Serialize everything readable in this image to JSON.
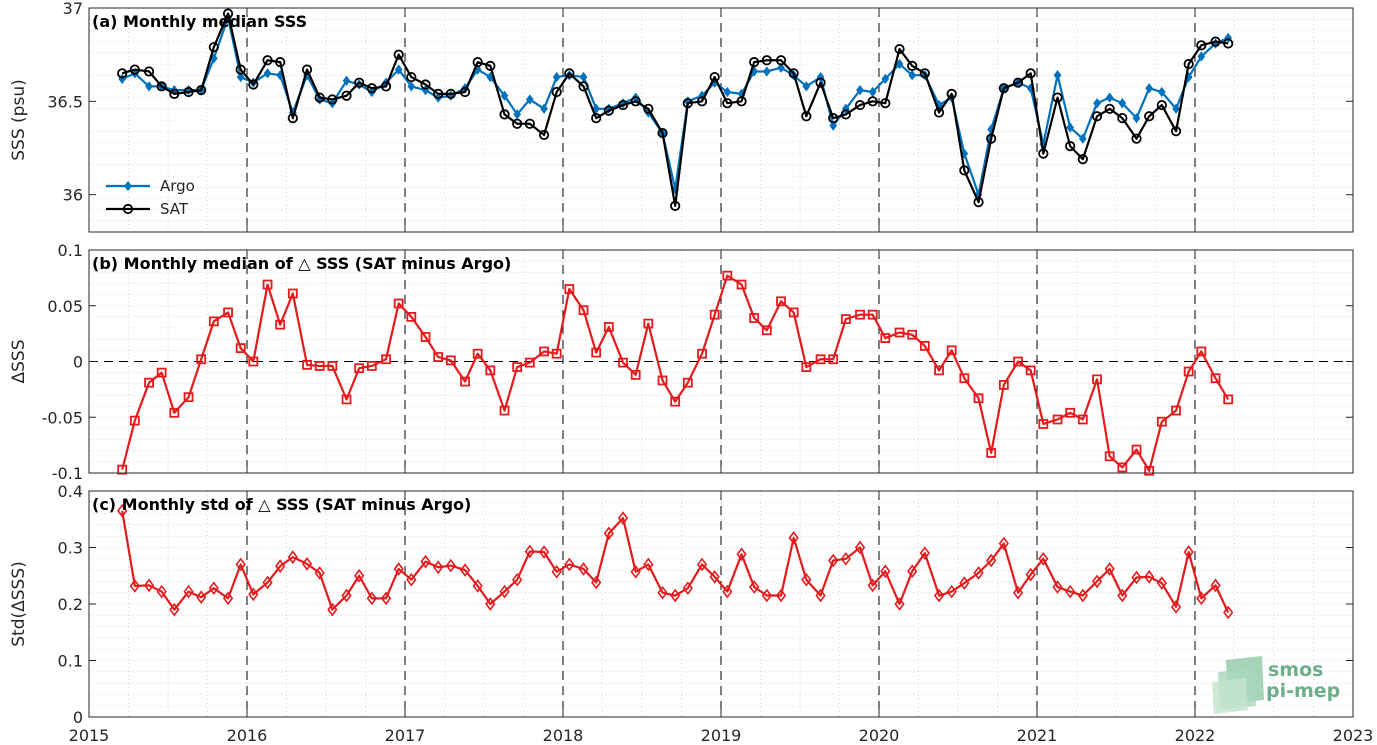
{
  "logo": {
    "line1": "smos",
    "line2": "pi-mep"
  },
  "x_axis": {
    "range": [
      2015,
      2023
    ],
    "ticks": [
      2015,
      2016,
      2017,
      2018,
      2019,
      2020,
      2021,
      2022,
      2023
    ],
    "tick_labels": [
      "2015",
      "2016",
      "2017",
      "2018",
      "2019",
      "2020",
      "2021",
      "2022",
      "2023"
    ]
  },
  "chart_data": [
    {
      "type": "line",
      "title": "(a) Monthly median SSS",
      "ylabel": "SSS (psu)",
      "ylim": [
        35.8,
        37
      ],
      "yticks": [
        36,
        36.5,
        37
      ],
      "ytick_labels": [
        "36",
        "36.5",
        "37"
      ],
      "grid": true,
      "legend": "bottom-left",
      "x": [
        2015.21,
        2015.29,
        2015.38,
        2015.46,
        2015.54,
        2015.63,
        2015.71,
        2015.79,
        2015.88,
        2015.96,
        2016.04,
        2016.13,
        2016.21,
        2016.29,
        2016.38,
        2016.46,
        2016.54,
        2016.63,
        2016.71,
        2016.79,
        2016.88,
        2016.96,
        2017.04,
        2017.13,
        2017.21,
        2017.29,
        2017.38,
        2017.46,
        2017.54,
        2017.63,
        2017.71,
        2017.79,
        2017.88,
        2017.96,
        2018.04,
        2018.13,
        2018.21,
        2018.29,
        2018.38,
        2018.46,
        2018.54,
        2018.63,
        2018.71,
        2018.79,
        2018.88,
        2018.96,
        2019.04,
        2019.13,
        2019.21,
        2019.29,
        2019.38,
        2019.46,
        2019.54,
        2019.63,
        2019.71,
        2019.79,
        2019.88,
        2019.96,
        2020.04,
        2020.13,
        2020.21,
        2020.29,
        2020.38,
        2020.46,
        2020.54,
        2020.63,
        2020.71,
        2020.79,
        2020.88,
        2020.96,
        2021.04,
        2021.13,
        2021.21,
        2021.29,
        2021.38,
        2021.46,
        2021.54,
        2021.63,
        2021.71,
        2021.79,
        2021.88,
        2021.96,
        2022.04,
        2022.13,
        2022.21
      ],
      "series": [
        {
          "name": "Argo",
          "color": "#0072bd",
          "marker": "diamond",
          "values": [
            36.62,
            36.65,
            36.58,
            36.58,
            36.56,
            36.56,
            36.56,
            36.73,
            36.95,
            36.63,
            36.6,
            36.65,
            36.64,
            36.44,
            36.64,
            36.51,
            36.49,
            36.61,
            36.59,
            36.55,
            36.6,
            36.67,
            36.58,
            36.56,
            36.52,
            36.53,
            36.57,
            36.67,
            36.63,
            36.53,
            36.43,
            36.51,
            36.46,
            36.63,
            36.64,
            36.63,
            36.46,
            36.46,
            36.49,
            36.52,
            36.44,
            36.33,
            36.03,
            36.5,
            36.53,
            36.6,
            36.55,
            36.54,
            36.66,
            36.66,
            36.68,
            36.64,
            36.58,
            36.63,
            36.37,
            36.46,
            36.56,
            36.55,
            36.62,
            36.7,
            36.64,
            36.64,
            36.48,
            36.52,
            36.22,
            36.0,
            36.35,
            36.57,
            36.6,
            36.57,
            36.27,
            36.64,
            36.36,
            36.3,
            36.49,
            36.52,
            36.49,
            36.41,
            36.57,
            36.55,
            36.46,
            36.63,
            36.74,
            36.81,
            36.84
          ]
        },
        {
          "name": "SAT",
          "color": "#000000",
          "marker": "circle",
          "values": [
            36.65,
            36.67,
            36.66,
            36.58,
            36.54,
            36.55,
            36.56,
            36.79,
            36.97,
            36.67,
            36.59,
            36.72,
            36.71,
            36.41,
            36.67,
            36.52,
            36.51,
            36.53,
            36.6,
            36.57,
            36.58,
            36.75,
            36.63,
            36.59,
            36.54,
            36.54,
            36.55,
            36.71,
            36.69,
            36.43,
            36.38,
            36.38,
            36.32,
            36.55,
            36.65,
            36.58,
            36.41,
            36.45,
            36.48,
            36.5,
            36.46,
            36.33,
            35.94,
            36.49,
            36.5,
            36.63,
            36.49,
            36.5,
            36.71,
            36.72,
            36.72,
            36.65,
            36.42,
            36.6,
            36.41,
            36.43,
            36.48,
            36.5,
            36.49,
            36.78,
            36.69,
            36.65,
            36.44,
            36.54,
            36.13,
            35.96,
            36.3,
            36.57,
            36.6,
            36.65,
            36.22,
            36.52,
            36.26,
            36.19,
            36.42,
            36.46,
            36.41,
            36.3,
            36.42,
            36.48,
            36.34,
            36.7,
            36.8,
            36.82,
            36.81
          ]
        }
      ]
    },
    {
      "type": "line",
      "title": "(b) Monthly median of △ SSS (SAT minus Argo)",
      "ylabel": "ΔSSS",
      "ylim": [
        -0.1,
        0.1
      ],
      "yticks": [
        -0.1,
        -0.05,
        0,
        0.05,
        0.1
      ],
      "ytick_labels": [
        "-0.1",
        "-0.05",
        "0",
        "0.05",
        "0.1"
      ],
      "grid": true,
      "zero_line": true,
      "series": [
        {
          "name": "ΔSSS",
          "color": "#e41a1c",
          "marker": "square",
          "values": [
            -0.097,
            -0.053,
            -0.019,
            -0.01,
            -0.046,
            -0.032,
            0.002,
            0.036,
            0.044,
            0.012,
            0.0,
            0.069,
            0.033,
            0.061,
            -0.003,
            -0.004,
            -0.004,
            -0.034,
            -0.006,
            -0.004,
            0.002,
            0.052,
            0.04,
            0.022,
            0.004,
            0.001,
            -0.018,
            0.007,
            -0.008,
            -0.044,
            -0.005,
            -0.001,
            0.009,
            0.007,
            0.065,
            0.046,
            0.008,
            0.031,
            -0.001,
            -0.012,
            0.034,
            -0.017,
            -0.036,
            -0.019,
            0.007,
            0.042,
            0.077,
            0.069,
            0.039,
            0.028,
            0.054,
            0.044,
            -0.005,
            0.002,
            0.002,
            0.038,
            0.042,
            0.042,
            0.021,
            0.026,
            0.024,
            0.014,
            -0.008,
            0.01,
            -0.015,
            -0.033,
            -0.082,
            -0.021,
            0.0,
            -0.008,
            -0.056,
            -0.052,
            -0.046,
            -0.052,
            -0.016,
            -0.085,
            -0.095,
            -0.079,
            -0.098,
            -0.054,
            -0.044,
            -0.009,
            0.009,
            -0.015,
            -0.034
          ]
        }
      ]
    },
    {
      "type": "line",
      "title": "(c) Monthly std of △ SSS (SAT minus Argo)",
      "ylabel": "Std(ΔSSS)",
      "ylim": [
        0,
        0.4
      ],
      "yticks": [
        0,
        0.1,
        0.2,
        0.3,
        0.4
      ],
      "ytick_labels": [
        "0",
        "0.1",
        "0.2",
        "0.3",
        "0.4"
      ],
      "grid": true,
      "series": [
        {
          "name": "Std(ΔSSS)",
          "color": "#e41a1c",
          "marker": "diamond",
          "values": [
            0.365,
            0.232,
            0.233,
            0.222,
            0.19,
            0.222,
            0.212,
            0.228,
            0.21,
            0.27,
            0.217,
            0.238,
            0.267,
            0.283,
            0.271,
            0.255,
            0.19,
            0.215,
            0.25,
            0.21,
            0.21,
            0.262,
            0.243,
            0.275,
            0.265,
            0.268,
            0.26,
            0.232,
            0.2,
            0.222,
            0.243,
            0.293,
            0.292,
            0.257,
            0.27,
            0.262,
            0.238,
            0.325,
            0.352,
            0.257,
            0.27,
            0.22,
            0.215,
            0.228,
            0.27,
            0.248,
            0.222,
            0.288,
            0.23,
            0.215,
            0.215,
            0.317,
            0.243,
            0.215,
            0.277,
            0.28,
            0.3,
            0.233,
            0.258,
            0.2,
            0.258,
            0.29,
            0.215,
            0.222,
            0.237,
            0.255,
            0.277,
            0.307,
            0.22,
            0.252,
            0.28,
            0.23,
            0.222,
            0.215,
            0.24,
            0.262,
            0.215,
            0.247,
            0.248,
            0.237,
            0.195,
            0.292,
            0.21,
            0.233,
            0.185
          ]
        }
      ]
    }
  ]
}
